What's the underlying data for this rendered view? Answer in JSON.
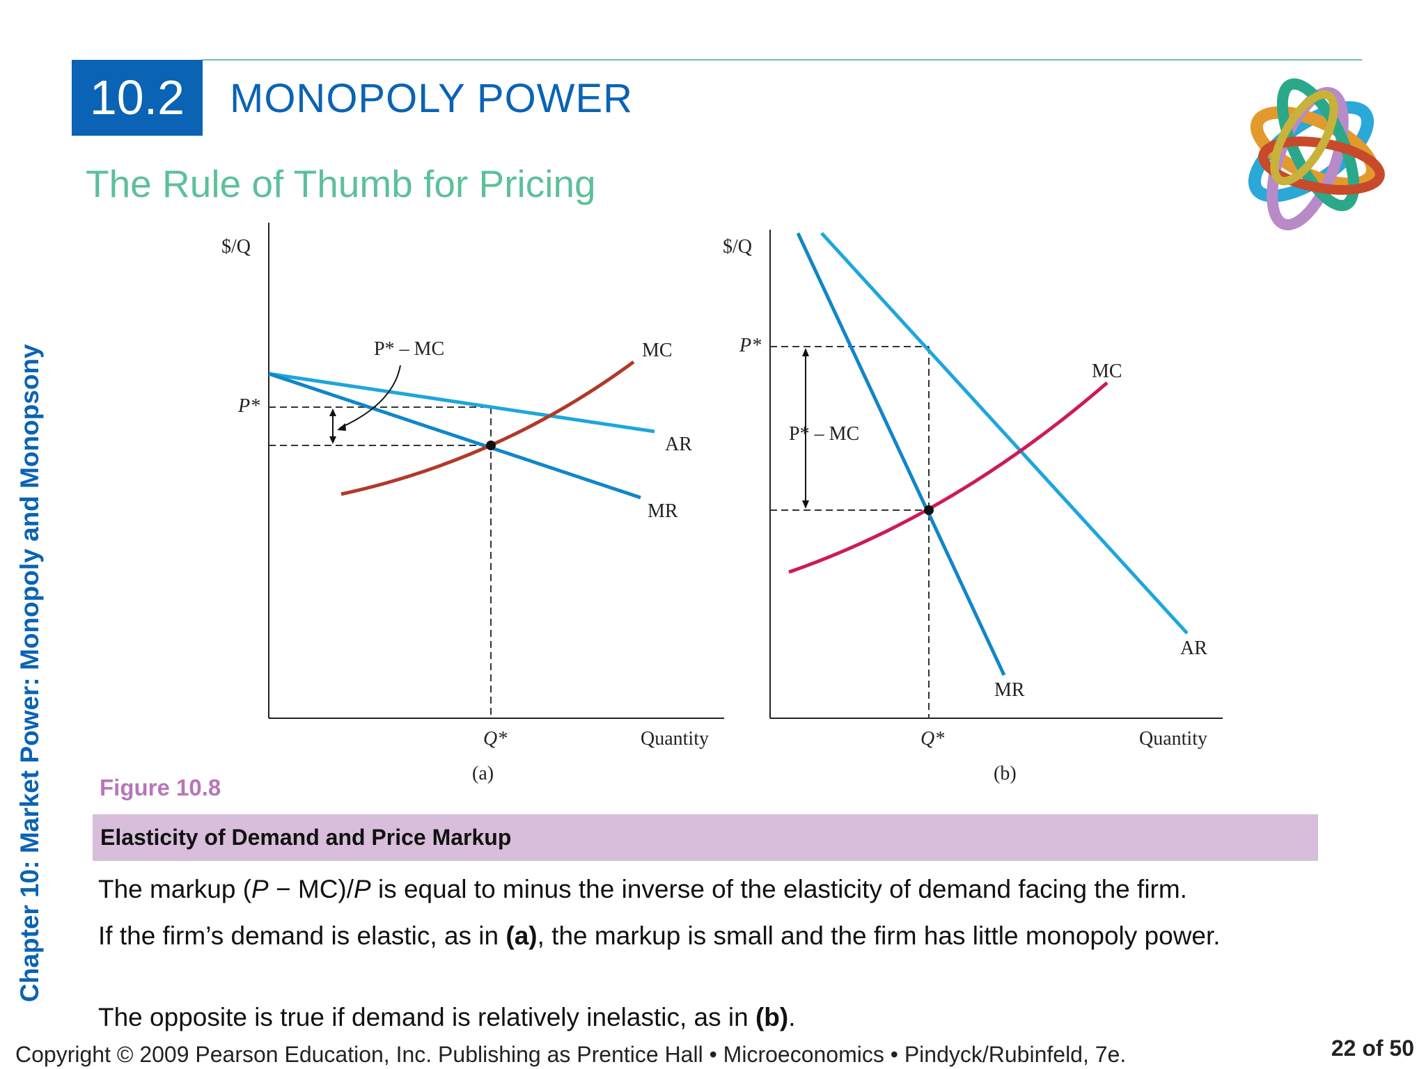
{
  "header": {
    "section_number": "10.2",
    "section_title": "MONOPOLY POWER",
    "subtitle": "The Rule of Thumb for Pricing"
  },
  "sidebar": {
    "chapter_label": "Chapter 10:  Market Power: Monopoly and Monopsony"
  },
  "figure": {
    "label": "Figure 10.8",
    "caption": "Elasticity of Demand and Price Markup",
    "panel_a": {
      "ylabel": "$/Q",
      "xlabel": "Quantity",
      "panel": "(a)",
      "p_star": "P*",
      "q_star": "Q*",
      "markup_label": "P* – MC",
      "mc": "MC",
      "ar": "AR",
      "mr": "MR"
    },
    "panel_b": {
      "ylabel": "$/Q",
      "xlabel": "Quantity",
      "panel": "(b)",
      "p_star": "P*",
      "q_star": "Q*",
      "markup_label": "P* – MC",
      "mc": "MC",
      "ar": "AR",
      "mr": "MR"
    }
  },
  "body": {
    "p1_a": "The markup (",
    "p1_P": "P",
    "p1_b": " − MC)/",
    "p1_P2": "P",
    "p1_c": " is equal to minus the inverse of the elasticity of demand facing the firm.",
    "p2_a": "If the firm’s demand is elastic, as in ",
    "p2_b": "(a)",
    "p2_c": ", the markup is small and the firm has little monopoly power.",
    "p3_a": "The opposite is true if demand is relatively inelastic, as in ",
    "p3_b": "(b)",
    "p3_c": "."
  },
  "footer": {
    "copyright": "Copyright © 2009 Pearson Education, Inc. Publishing as Prentice Hall  •  Microeconomics  •  Pindyck/Rubinfeld, 7e.",
    "page": "22 of 50"
  },
  "colors": {
    "brand_blue": "#0a63b4",
    "accent_green": "#5cc09a",
    "caption_bg": "#d8bedb",
    "curve_blue": "#1ea6dc",
    "mc_red_a": "#b03a2a",
    "mc_red_b": "#cc1b55"
  }
}
